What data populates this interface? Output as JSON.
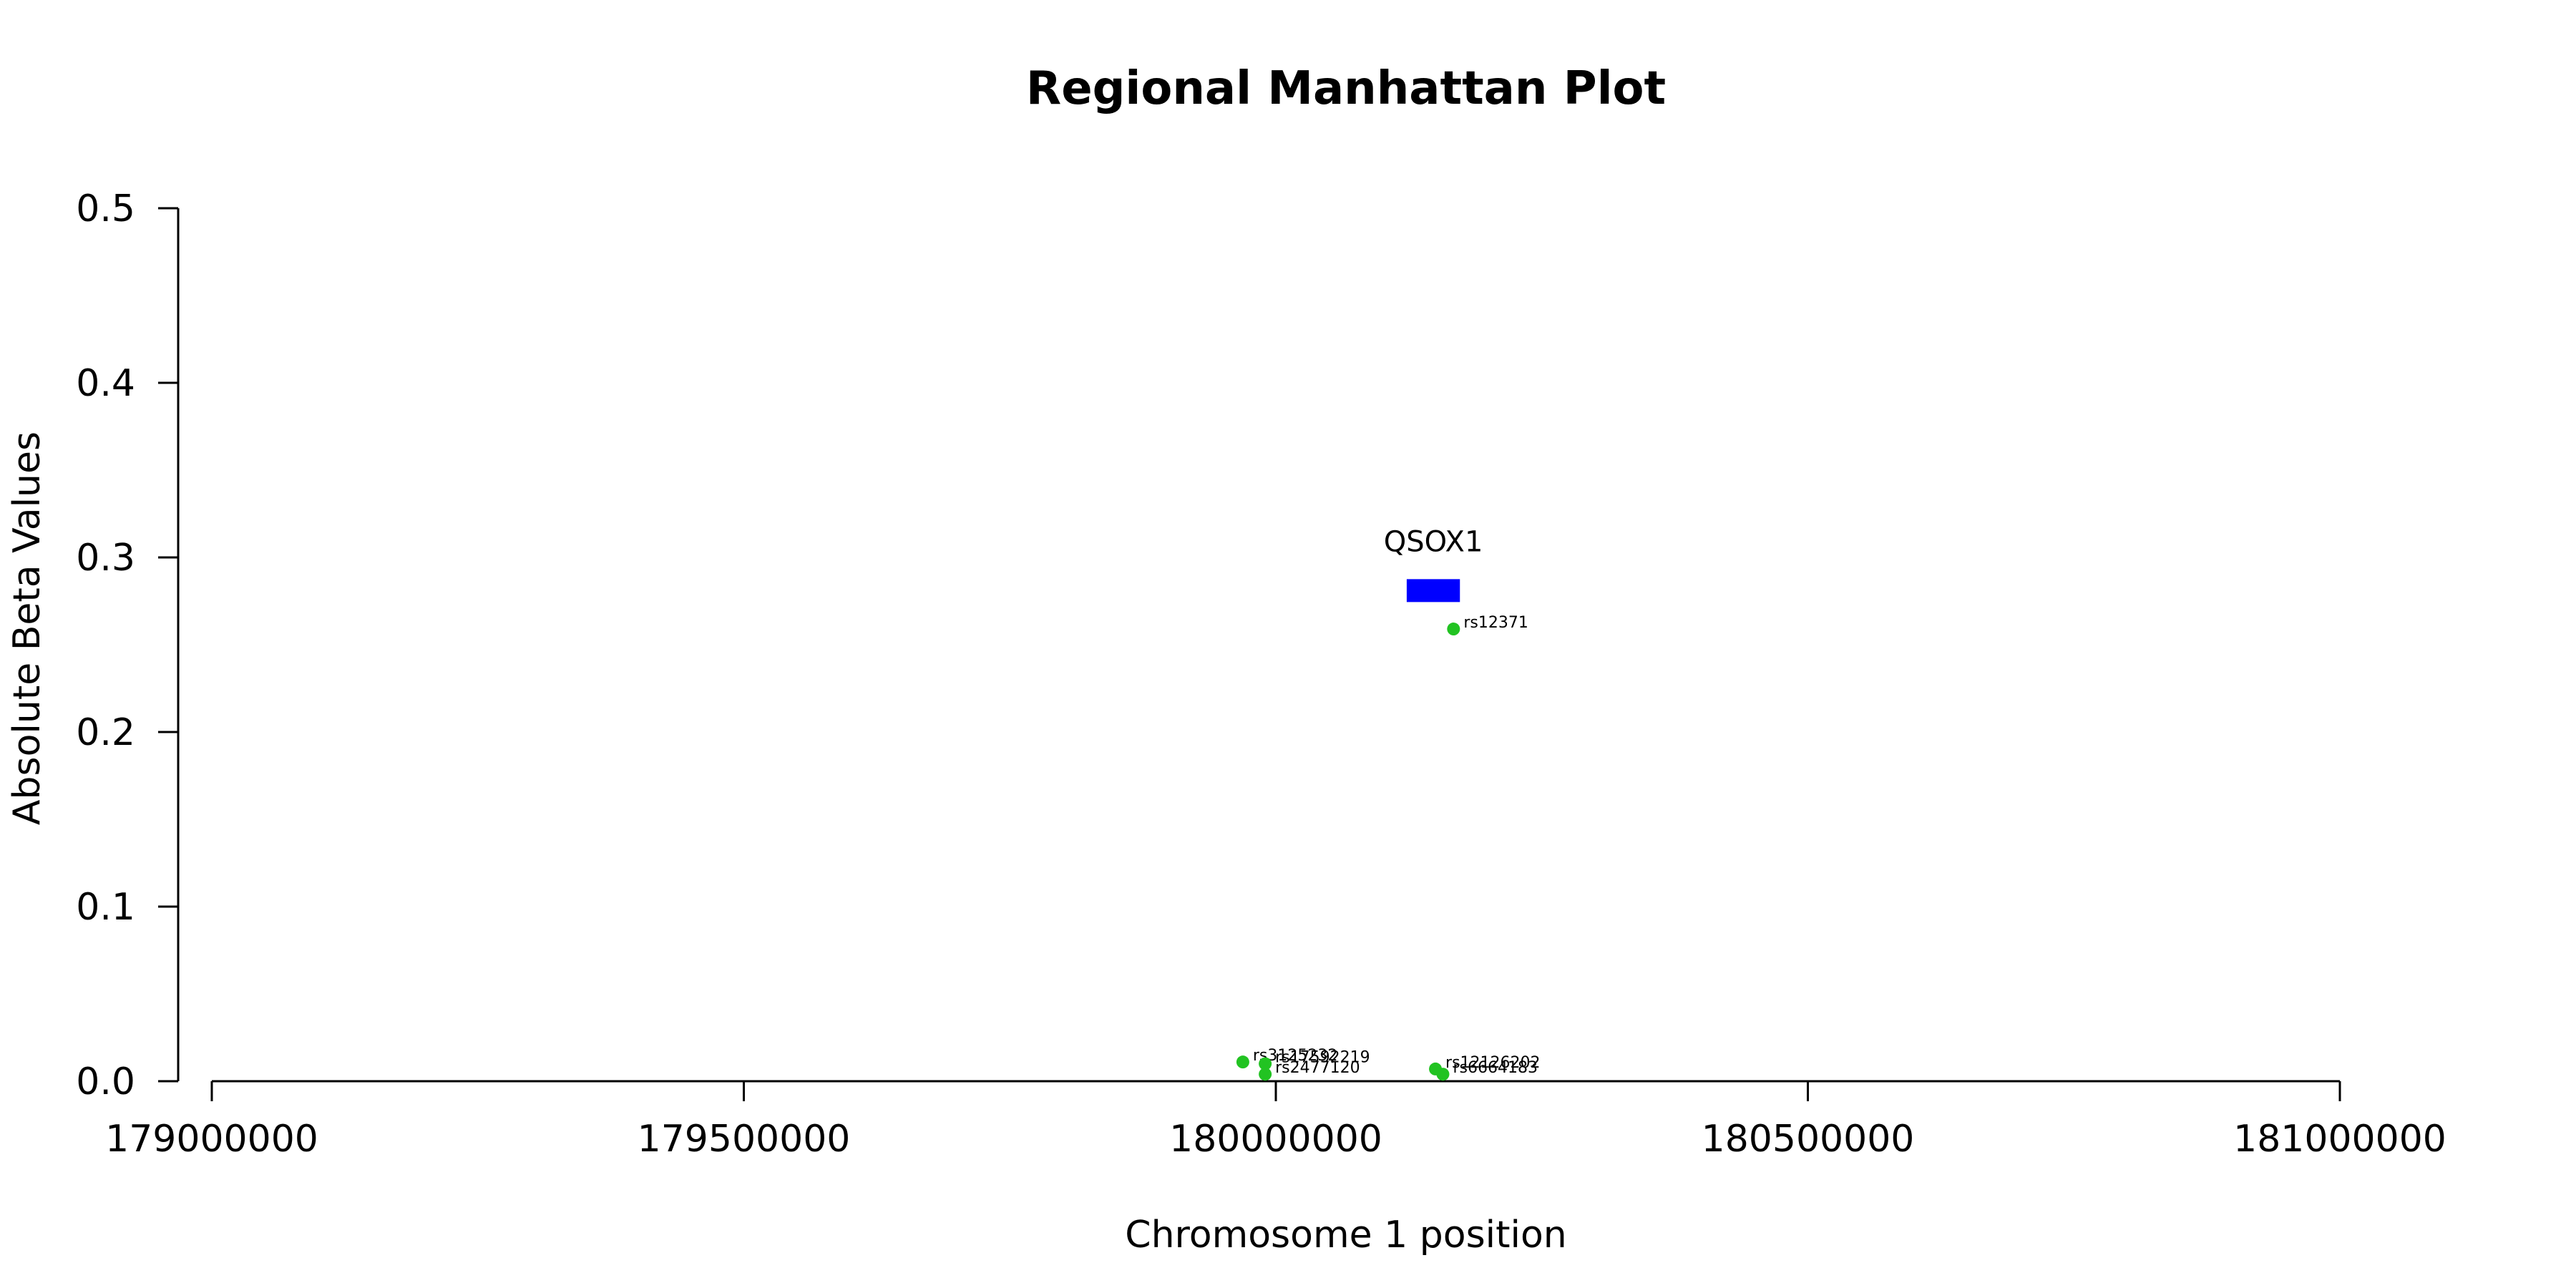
{
  "chart_data": {
    "type": "scatter",
    "title": "Regional Manhattan Plot",
    "xlabel": "Chromosome 1 position",
    "ylabel": "Absolute Beta Values",
    "xlim": [
      179000000,
      181000000
    ],
    "ylim": [
      0,
      0.5
    ],
    "x_ticks": [
      179000000,
      179500000,
      180000000,
      180500000,
      181000000
    ],
    "x_tick_labels": [
      "179000000",
      "179500000",
      "180000000",
      "180500000",
      "181000000"
    ],
    "y_ticks": [
      0,
      0.1,
      0.2,
      0.3,
      0.4,
      0.5
    ],
    "y_tick_labels": [
      "0.0",
      "0.1",
      "0.2",
      "0.3",
      "0.4",
      "0.5"
    ],
    "grid": false,
    "point_color": "#22c322",
    "gene_color": "#0000ff",
    "genes": [
      {
        "name": "QSOX1",
        "start": 180123000,
        "end": 180173000,
        "y": 0.281
      }
    ],
    "points": [
      {
        "label": "rs12371",
        "x": 180167000,
        "y": 0.259
      },
      {
        "label": "rs3125232",
        "x": 179969000,
        "y": 0.011
      },
      {
        "label": "rs17592219",
        "x": 179990000,
        "y": 0.01
      },
      {
        "label": "rs2477120",
        "x": 179990000,
        "y": 0.004
      },
      {
        "label": "rs12126202",
        "x": 180150000,
        "y": 0.007
      },
      {
        "label": "rs6664183",
        "x": 180157000,
        "y": 0.004
      }
    ]
  }
}
